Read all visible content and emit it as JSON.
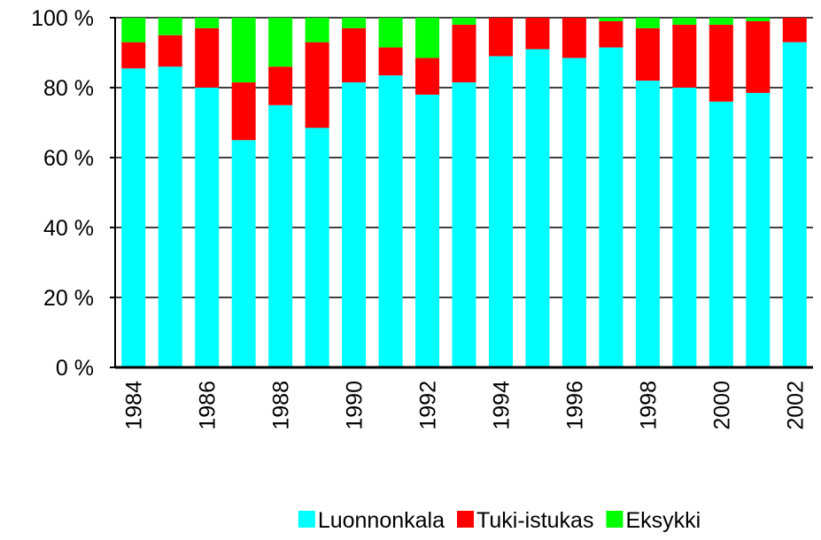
{
  "chart_data": {
    "type": "stacked_bar",
    "categories": [
      "1984",
      null,
      "1986",
      null,
      "1988",
      null,
      "1990",
      null,
      "1992",
      null,
      "1994",
      null,
      "1996",
      null,
      "1998",
      null,
      "2000",
      null,
      "2002"
    ],
    "series": [
      {
        "name": "Luonnonkala",
        "color": "#00ffff",
        "values": [
          85.5,
          86,
          80,
          65,
          75,
          68.5,
          81.5,
          83.5,
          78,
          81.5,
          89,
          91,
          88.5,
          91.5,
          82,
          80,
          76,
          78.5,
          93
        ]
      },
      {
        "name": "Tuki-istukas",
        "color": "#ff0000",
        "values": [
          7.5,
          9,
          17,
          16.5,
          11,
          24.5,
          15.5,
          8,
          10.5,
          16.5,
          11,
          9,
          11.5,
          7.5,
          15,
          18,
          22,
          20.5,
          7
        ]
      },
      {
        "name": "Eksykki",
        "color": "#00ff00",
        "values": [
          7,
          5,
          3,
          18.5,
          14,
          7,
          3,
          8.5,
          11.5,
          2,
          0,
          0,
          0,
          1,
          3,
          2,
          2,
          1,
          0
        ]
      }
    ],
    "ylim": [
      0,
      100
    ],
    "yticks": [
      {
        "value": 0,
        "label": "0 %"
      },
      {
        "value": 20,
        "label": "20 %"
      },
      {
        "value": 40,
        "label": "40 %"
      },
      {
        "value": 60,
        "label": "60 %"
      },
      {
        "value": 80,
        "label": "80 %"
      },
      {
        "value": 100,
        "label": "100 %"
      }
    ],
    "grid": true,
    "legend": "bottom"
  }
}
